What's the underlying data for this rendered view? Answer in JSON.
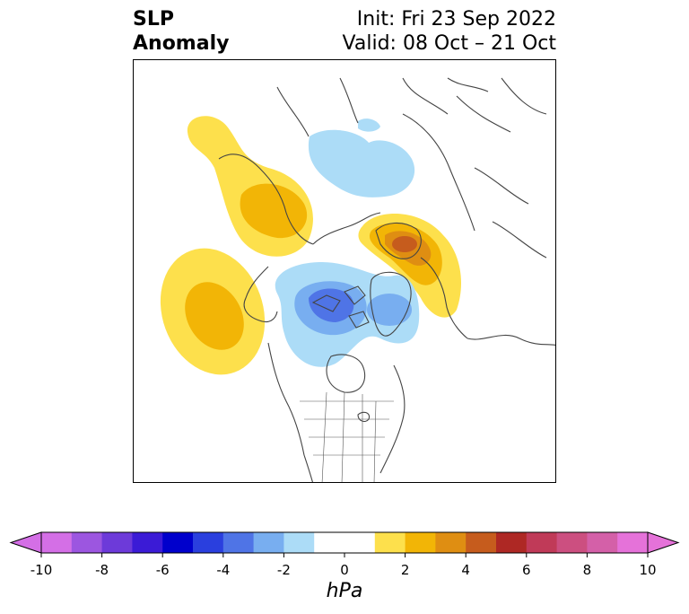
{
  "header": {
    "title_line1": "SLP",
    "title_line2": "Anomaly",
    "init": "Init: Fri 23 Sep 2022",
    "valid": "Valid: 08 Oct – 21 Oct"
  },
  "colorbar": {
    "unit_label": "hPa",
    "ticks": [
      "-10",
      "-8",
      "-6",
      "-4",
      "-2",
      "0",
      "2",
      "4",
      "6",
      "8",
      "10"
    ],
    "bins": [
      {
        "from": -10,
        "to": -9,
        "color": "#d46fe6"
      },
      {
        "from": -9,
        "to": -8,
        "color": "#9c56e0"
      },
      {
        "from": -8,
        "to": -7,
        "color": "#6d3ad9"
      },
      {
        "from": -7,
        "to": -6,
        "color": "#3b1bd6"
      },
      {
        "from": -6,
        "to": -5,
        "color": "#0000cc"
      },
      {
        "from": -5,
        "to": -4,
        "color": "#2a3fde"
      },
      {
        "from": -4,
        "to": -3,
        "color": "#4f74e6"
      },
      {
        "from": -3,
        "to": -2,
        "color": "#78aef0"
      },
      {
        "from": -2,
        "to": -1,
        "color": "#acdcf7"
      },
      {
        "from": -1,
        "to": 1,
        "color": "#ffffff"
      },
      {
        "from": 1,
        "to": 2,
        "color": "#fde04c"
      },
      {
        "from": 2,
        "to": 3,
        "color": "#f2b506"
      },
      {
        "from": 3,
        "to": 4,
        "color": "#df8e12"
      },
      {
        "from": 4,
        "to": 5,
        "color": "#c65c1d"
      },
      {
        "from": 5,
        "to": 6,
        "color": "#ae2824"
      },
      {
        "from": 6,
        "to": 7,
        "color": "#c03a58"
      },
      {
        "from": 7,
        "to": 8,
        "color": "#cc4f80"
      },
      {
        "from": 8,
        "to": 9,
        "color": "#d460a8"
      },
      {
        "from": 9,
        "to": 10,
        "color": "#e572d9"
      }
    ],
    "extend_low_color": "#d46fe6",
    "extend_high_color": "#e572d9"
  },
  "anomalies": [
    {
      "name": "positive-anomaly-north-pacific",
      "sign": "positive",
      "levels": [
        1,
        2
      ]
    },
    {
      "name": "positive-anomaly-east-siberia",
      "sign": "positive",
      "levels": [
        1,
        2
      ]
    },
    {
      "name": "positive-anomaly-scandinavia",
      "sign": "positive",
      "levels": [
        1,
        2,
        3,
        4
      ]
    },
    {
      "name": "negative-anomaly-canadian-arctic",
      "sign": "negative",
      "levels": [
        -1,
        -2,
        -3,
        -4
      ]
    },
    {
      "name": "negative-anomaly-greenland",
      "sign": "negative",
      "levels": [
        -1,
        -2
      ]
    },
    {
      "name": "negative-anomaly-central-siberia",
      "sign": "negative",
      "levels": [
        -1
      ]
    }
  ]
}
